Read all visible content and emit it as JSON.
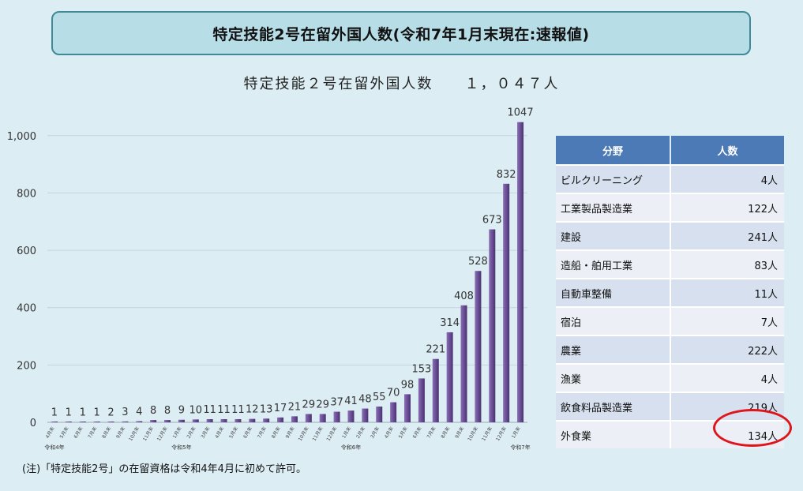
{
  "header": {
    "title": "特定技能2号在留外国人数(令和7年1月末現在:速報値)"
  },
  "subtitle": {
    "label": "特定技能２号在留外国人数",
    "total": "１，０４７人"
  },
  "chart_data": {
    "type": "bar",
    "categories": [
      "4月末",
      "5月末",
      "6月末",
      "7月末",
      "8月末",
      "9月末",
      "10月末",
      "11月末",
      "12月末",
      "1月末",
      "2月末",
      "3月末",
      "4月末",
      "5月末",
      "6月末",
      "7月末",
      "8月末",
      "9月末",
      "10月末",
      "11月末",
      "12月末",
      "1月末",
      "2月末",
      "3月末",
      "4月末",
      "5月末",
      "6月末",
      "7月末",
      "8月末",
      "9月末",
      "10月末",
      "11月末",
      "12月末",
      "1月末"
    ],
    "values": [
      1,
      1,
      1,
      1,
      2,
      3,
      4,
      8,
      8,
      9,
      10,
      11,
      11,
      11,
      12,
      13,
      17,
      21,
      29,
      29,
      37,
      41,
      48,
      55,
      70,
      98,
      153,
      221,
      314,
      408,
      528,
      673,
      832,
      1047
    ],
    "year_labels": [
      {
        "index": 0,
        "label": "令和4年"
      },
      {
        "index": 9,
        "label": "令和5年"
      },
      {
        "index": 21,
        "label": "令和6年"
      },
      {
        "index": 33,
        "label": "令和7年"
      }
    ],
    "yticks": [
      0,
      200,
      400,
      600,
      800,
      1000
    ],
    "ytick_labels": [
      "0",
      "200",
      "400",
      "600",
      "800",
      "1,000"
    ],
    "ylim": [
      0,
      1060
    ],
    "grid": true,
    "bar_color": "#6b4f96"
  },
  "table": {
    "headers": [
      "分野",
      "人数"
    ],
    "rows": [
      {
        "field": "ビルクリーニング",
        "count": "4人"
      },
      {
        "field": "工業製品製造業",
        "count": "122人"
      },
      {
        "field": "建設",
        "count": "241人"
      },
      {
        "field": "造船・舶用工業",
        "count": "83人"
      },
      {
        "field": "自動車整備",
        "count": "11人"
      },
      {
        "field": "宿泊",
        "count": "7人"
      },
      {
        "field": "農業",
        "count": "222人"
      },
      {
        "field": "漁業",
        "count": "4人"
      },
      {
        "field": "飲食料品製造業",
        "count": "219人"
      },
      {
        "field": "外食業",
        "count": "134人"
      }
    ]
  },
  "note": "(注)「特定技能2号」の在留資格は令和4年4月に初めて許可。",
  "colors": {
    "highlight": "#e0141b",
    "header_bg": "#4b7ab7",
    "title_border": "#3f8a96"
  }
}
